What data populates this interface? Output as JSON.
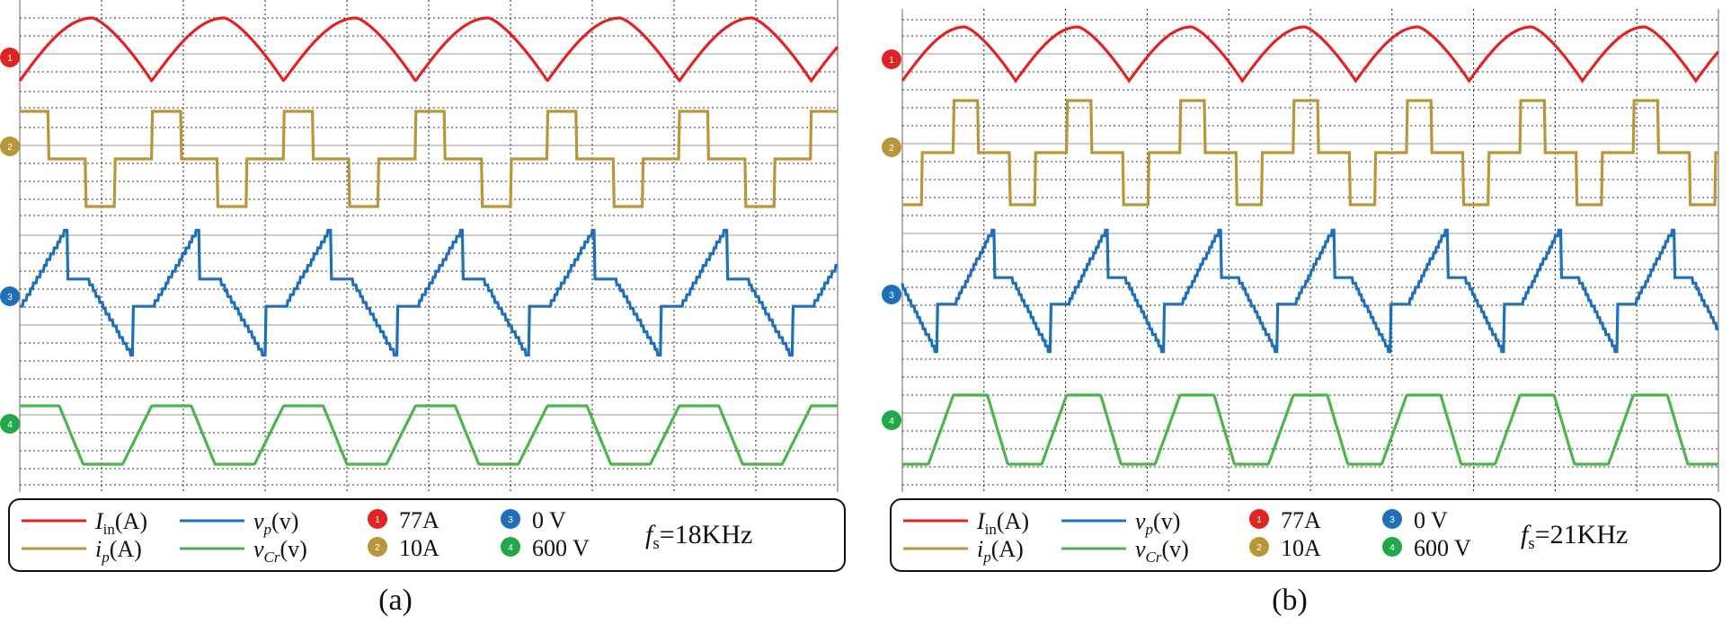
{
  "chart_data": [
    {
      "type": "line",
      "panel_label": "(a)",
      "switching_frequency": "18KHz",
      "time_divisions": 10,
      "series": [
        {
          "name": "I_in(A)",
          "color": "#e02424",
          "channel": "1",
          "scale": "77A",
          "marker_color": "#e02424",
          "shape": "triangle-ripple",
          "cycles": 6.2,
          "phase": 0.0,
          "low": 0.0,
          "high": 1.0
        },
        {
          "name": "i_p(A)",
          "color": "#b8963a",
          "channel": "2",
          "scale": "10A",
          "marker_color": "#b8963a",
          "shape": "three-level-square",
          "cycles": 6.2,
          "phase": 0.0,
          "levels": [
            1.0,
            0.5,
            0.0
          ]
        },
        {
          "name": "v_p(v)",
          "color": "#1f70b8",
          "channel": "3",
          "scale": "0 V",
          "marker_color": "#1f70b8",
          "shape": "staircase-sawtooth",
          "cycles": 6.2,
          "phase": 0.0,
          "low": 0.0,
          "high": 1.0
        },
        {
          "name": "v_Cr(v)",
          "color": "#4cb54c",
          "channel": "4",
          "scale": "600 V",
          "marker_color": "#22a84a",
          "shape": "trapezoid",
          "cycles": 6.2,
          "phase": 0.0,
          "low": 0.0,
          "high": 1.0
        }
      ],
      "legend": {
        "lines": [
          {
            "sym": "I",
            "sub": "in",
            "unit": "(A)",
            "color": "#e02424"
          },
          {
            "sym": "i",
            "sub": "p",
            "unit": "(A)",
            "color": "#b8963a"
          },
          {
            "sym": "v",
            "sub": "p",
            "unit": "(v)",
            "color": "#1f70b8"
          },
          {
            "sym": "v",
            "sub": "Cr",
            "unit": "(v)",
            "color": "#4cb54c"
          }
        ],
        "scales": [
          {
            "marker": "1",
            "color": "#e02424",
            "text": "77A"
          },
          {
            "marker": "2",
            "color": "#b8963a",
            "text": "10A"
          },
          {
            "marker": "3",
            "color": "#1f70b8",
            "text": "0 V"
          },
          {
            "marker": "4",
            "color": "#22a84a",
            "text": "600 V"
          }
        ],
        "freq_symbol": "f",
        "freq_sub": "s",
        "freq_value": "=18KHz"
      }
    },
    {
      "type": "line",
      "panel_label": "(b)",
      "switching_frequency": "21KHz",
      "time_divisions": 10,
      "series": [
        {
          "name": "I_in(A)",
          "color": "#e02424",
          "channel": "1",
          "scale": "77A",
          "marker_color": "#e02424",
          "shape": "triangle-ripple",
          "cycles": 7.2,
          "phase": 0.0,
          "low": 0.0,
          "high": 1.0
        },
        {
          "name": "i_p(A)",
          "color": "#b8963a",
          "channel": "2",
          "scale": "10A",
          "marker_color": "#b8963a",
          "shape": "three-level-square",
          "cycles": 7.2,
          "phase": 0.55,
          "levels": [
            1.0,
            0.5,
            0.0
          ]
        },
        {
          "name": "v_p(v)",
          "color": "#1f70b8",
          "channel": "3",
          "scale": "0 V",
          "marker_color": "#1f70b8",
          "shape": "staircase-sawtooth",
          "cycles": 7.2,
          "phase": 0.55,
          "low": 0.0,
          "high": 1.0
        },
        {
          "name": "v_Cr(v)",
          "color": "#4cb54c",
          "channel": "4",
          "scale": "600 V",
          "marker_color": "#22a84a",
          "shape": "trapezoid",
          "cycles": 7.2,
          "phase": 0.55,
          "low": 0.0,
          "high": 1.0
        }
      ],
      "legend": {
        "lines": [
          {
            "sym": "I",
            "sub": "in",
            "unit": "(A)",
            "color": "#e02424"
          },
          {
            "sym": "i",
            "sub": "p",
            "unit": "(A)",
            "color": "#b8963a"
          },
          {
            "sym": "v",
            "sub": "p",
            "unit": "(v)",
            "color": "#1f70b8"
          },
          {
            "sym": "v",
            "sub": "Cr",
            "unit": "(v)",
            "color": "#4cb54c"
          }
        ],
        "scales": [
          {
            "marker": "1",
            "color": "#e02424",
            "text": "77A"
          },
          {
            "marker": "2",
            "color": "#b8963a",
            "text": "10A"
          },
          {
            "marker": "3",
            "color": "#1f70b8",
            "text": "0 V"
          },
          {
            "marker": "4",
            "color": "#22a84a",
            "text": "600 V"
          }
        ],
        "freq_symbol": "f",
        "freq_sub": "s",
        "freq_value": "=21KHz"
      }
    }
  ],
  "captions": {
    "a": "(a)",
    "b": "(b)"
  }
}
